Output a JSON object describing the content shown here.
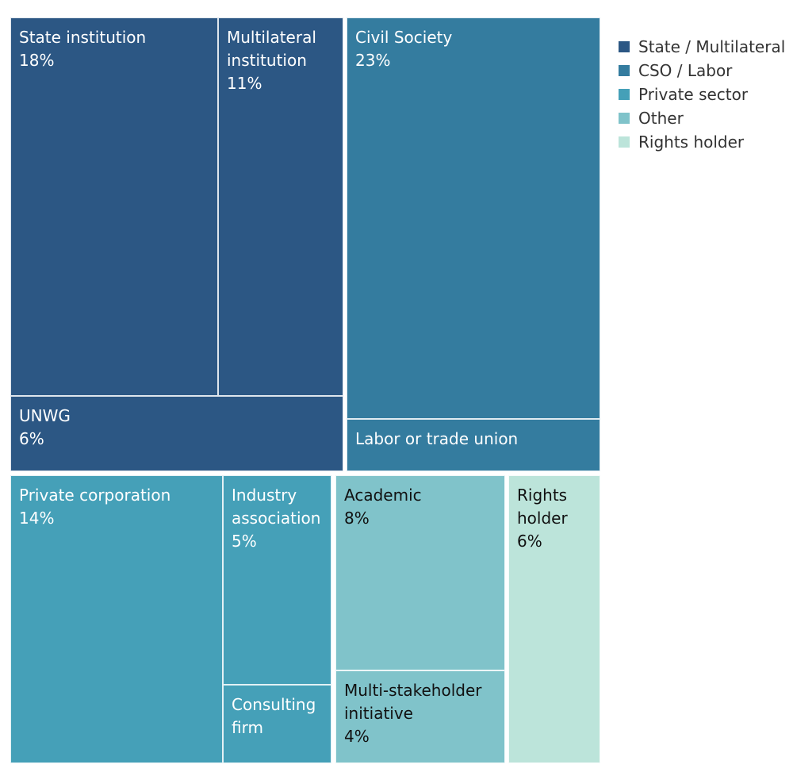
{
  "chart_data": {
    "type": "treemap",
    "legend": {
      "position": "right",
      "entries": [
        {
          "key": "state",
          "label": "State / Multilateral",
          "color": "#2c5784"
        },
        {
          "key": "cso",
          "label": "CSO / Labor",
          "color": "#347c9f"
        },
        {
          "key": "private",
          "label": "Private sector",
          "color": "#45a0b8"
        },
        {
          "key": "other",
          "label": "Other",
          "color": "#80c3ca"
        },
        {
          "key": "rights",
          "label": "Rights holder",
          "color": "#bce4da"
        }
      ]
    },
    "cells": [
      {
        "id": "state-institution",
        "group": "state",
        "name": "State institution",
        "value_label": "18%",
        "value": 18
      },
      {
        "id": "multilateral-institution",
        "group": "state",
        "name": "Multilateral\ninstitution",
        "value_label": "11%",
        "value": 11
      },
      {
        "id": "unwg",
        "group": "state",
        "name": "UNWG",
        "value_label": "6%",
        "value": 6
      },
      {
        "id": "civil-society",
        "group": "cso",
        "name": "Civil Society",
        "value_label": "23%",
        "value": 23
      },
      {
        "id": "labor-trade-union",
        "group": "cso",
        "name": "Labor or trade union",
        "value_label": "",
        "value": null
      },
      {
        "id": "private-corporation",
        "group": "private",
        "name": "Private corporation",
        "value_label": "14%",
        "value": 14
      },
      {
        "id": "industry-association",
        "group": "private",
        "name": "Industry\nassociation",
        "value_label": "5%",
        "value": 5
      },
      {
        "id": "consulting-firm",
        "group": "private",
        "name": "Consulting\nfirm",
        "value_label": "",
        "value": null
      },
      {
        "id": "academic",
        "group": "other",
        "name": "Academic",
        "value_label": "8%",
        "value": 8
      },
      {
        "id": "multi-stakeholder-initiative",
        "group": "other",
        "name": "Multi-stakeholder\ninitiative",
        "value_label": "4%",
        "value": 4
      },
      {
        "id": "rights-holder",
        "group": "rights",
        "name": "Rights\nholder",
        "value_label": "6%",
        "value": 6
      }
    ]
  }
}
